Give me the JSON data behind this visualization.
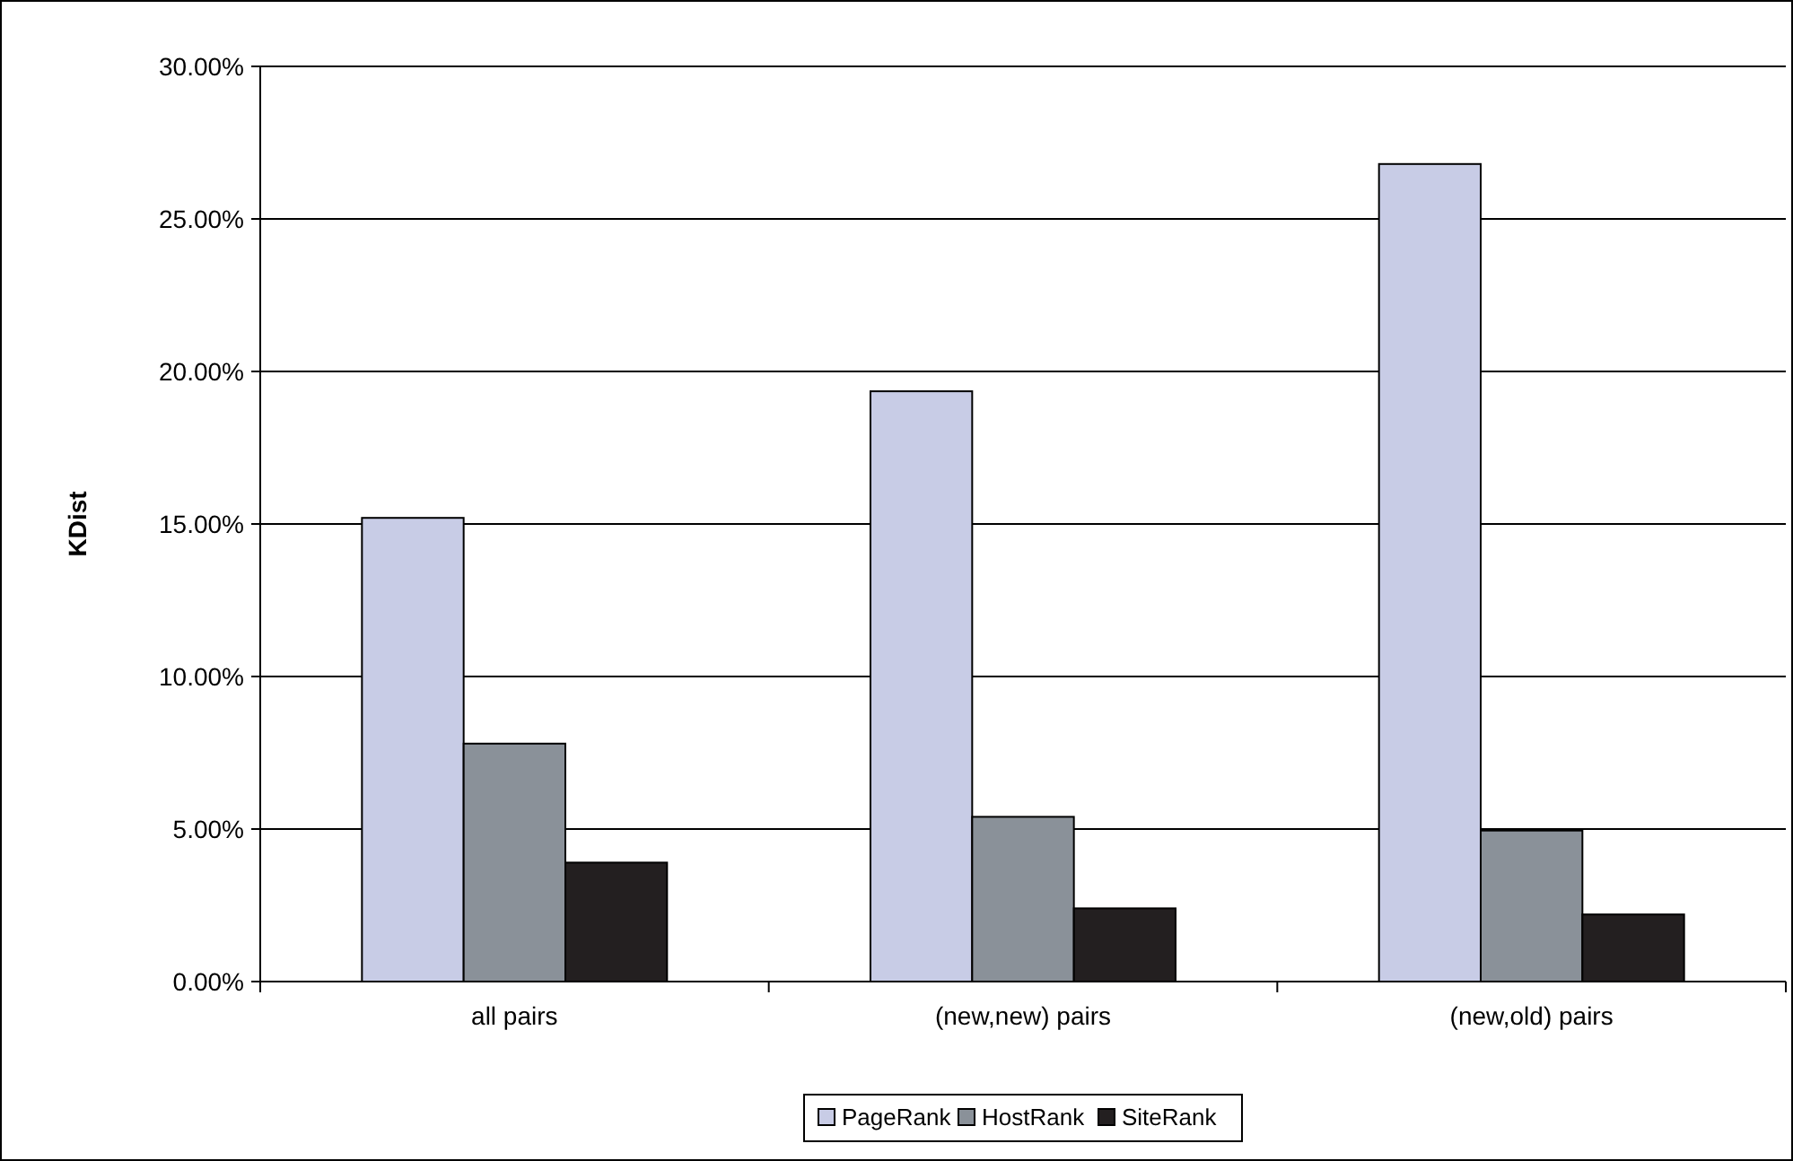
{
  "chart_data": {
    "type": "bar",
    "ylabel": "KDist",
    "categories": [
      "all pairs",
      "(new,new) pairs",
      "(new,old) pairs"
    ],
    "series": [
      {
        "name": "PageRank",
        "color": "#c8cce6",
        "values": [
          15.2,
          19.35,
          26.8
        ]
      },
      {
        "name": "HostRank",
        "color": "#8a9199",
        "values": [
          7.8,
          5.4,
          4.95
        ]
      },
      {
        "name": "SiteRank",
        "color": "#231f20",
        "values": [
          3.9,
          2.4,
          2.2
        ]
      }
    ],
    "ylim": [
      0,
      30
    ],
    "yticks": [
      {
        "value": 0,
        "label": "0.00%"
      },
      {
        "value": 5,
        "label": "5.00%"
      },
      {
        "value": 10,
        "label": "10.00%"
      },
      {
        "value": 15,
        "label": "15.00%"
      },
      {
        "value": 20,
        "label": "20.00%"
      },
      {
        "value": 25,
        "label": "25.00%"
      },
      {
        "value": 30,
        "label": "30.00%"
      }
    ],
    "grid": "y",
    "legend": "bottom"
  }
}
